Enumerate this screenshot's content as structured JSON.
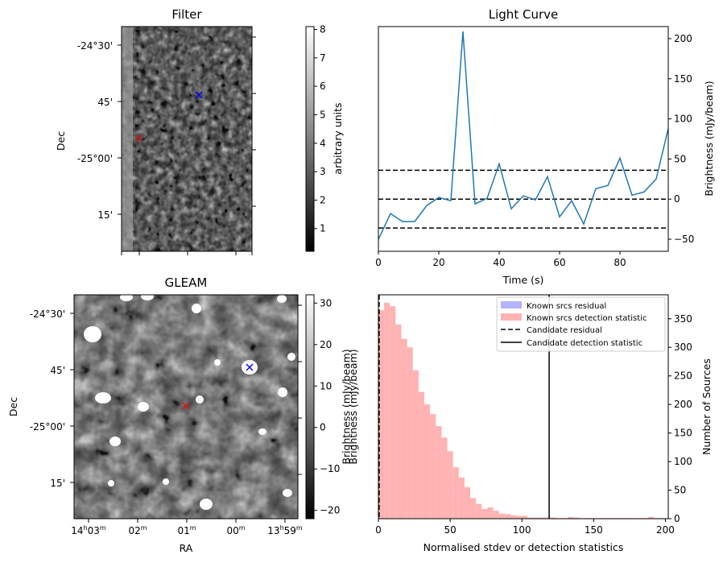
{
  "chart_data": [
    {
      "type": "heatmap",
      "panel": "filter",
      "title": "Filter",
      "ylabel": "Dec",
      "ytick_labels": [
        "-24°30'",
        "45'",
        "-25°00'",
        "15'"
      ],
      "colorbar": {
        "label": "arbitrary units",
        "ticks": [
          1,
          2,
          3,
          4,
          5,
          6,
          7,
          8
        ],
        "range": [
          0.2,
          8.1
        ]
      },
      "markers": [
        {
          "symbol": "x",
          "color": "#ff0000",
          "meaning": "candidate"
        },
        {
          "symbol": "x",
          "color": "#0000ff",
          "meaning": "known source"
        }
      ],
      "colors": {
        "dark": "#121212",
        "light": "#f0f0f0"
      }
    },
    {
      "type": "line",
      "panel": "light-curve",
      "title": "Light Curve",
      "xlabel": "Time (s)",
      "ylabel": "Brightness (mJy/beam)",
      "xlim": [
        0,
        96
      ],
      "ylim": [
        -65,
        215
      ],
      "xticks": [
        0,
        20,
        40,
        60,
        80
      ],
      "yticks": [
        -50,
        0,
        50,
        100,
        150,
        200
      ],
      "x": [
        0,
        4,
        8,
        12,
        16,
        20,
        24,
        28,
        32,
        36,
        40,
        44,
        48,
        52,
        56,
        60,
        64,
        68,
        72,
        76,
        80,
        84,
        88,
        92,
        96
      ],
      "y": [
        -50,
        -18,
        -28,
        -28,
        -8,
        2,
        -2,
        209,
        -6,
        1,
        44,
        -12,
        4,
        -1,
        28,
        -22,
        -2,
        -31,
        13,
        17,
        51,
        5,
        9,
        25,
        88
      ],
      "hlines": [
        36,
        0,
        -36
      ],
      "color": "#1f77b4"
    },
    {
      "type": "heatmap",
      "panel": "gleam",
      "title": "GLEAM",
      "xlabel": "RA",
      "ylabel": "Dec",
      "ytick_labels": [
        "-24°30'",
        "45'",
        "-25°00'",
        "15'"
      ],
      "xtick_labels": [
        {
          "main": "14",
          "sup1": "h",
          "mid": "03",
          "sup2": "m"
        },
        {
          "main": "02",
          "sup1": "m"
        },
        {
          "main": "01",
          "sup1": "m"
        },
        {
          "main": "00",
          "sup1": "m"
        },
        {
          "main": "13",
          "sup1": "h",
          "mid": "59",
          "sup2": "m"
        }
      ],
      "colorbar": {
        "label": "Brightness (mJy/beam)",
        "ticks": [
          -20,
          -10,
          0,
          10,
          20,
          30
        ],
        "range": [
          -22,
          32
        ]
      },
      "markers": [
        {
          "symbol": "x",
          "color": "#ff0000",
          "meaning": "candidate"
        },
        {
          "symbol": "x",
          "color": "#0000ff",
          "meaning": "known source"
        }
      ]
    },
    {
      "type": "bar",
      "panel": "histogram",
      "xlabel": "Normalised stdev or detection statistics",
      "ylabel_left": "Brightness (mJy/beam)",
      "ylabel_right": "Number of Sources",
      "xlim": [
        0,
        202
      ],
      "ylim": [
        0,
        392
      ],
      "xticks": [
        0,
        50,
        100,
        150,
        200
      ],
      "yticks": [
        0,
        50,
        100,
        150,
        200,
        250,
        300,
        350
      ],
      "bin_width": 4,
      "bin_start": 0,
      "values": [
        365,
        378,
        372,
        340,
        315,
        300,
        260,
        222,
        200,
        183,
        162,
        142,
        118,
        90,
        72,
        55,
        36,
        26,
        17,
        20,
        14,
        9,
        8,
        6,
        5,
        5,
        2,
        2,
        2,
        2,
        2,
        1,
        1,
        3,
        2,
        1,
        1,
        1,
        1,
        1,
        1,
        1,
        1,
        1,
        1,
        1,
        1,
        3,
        1,
        1
      ],
      "candidate_residual": 0.5,
      "candidate_detection_statistic": 119,
      "legend": [
        {
          "label": "Known srcs residual",
          "color": "#b3b3ff",
          "kind": "patch"
        },
        {
          "label": "Known srcs detection statistic",
          "color": "#ffb3b3",
          "kind": "patch"
        },
        {
          "label": "Candidate residual",
          "color": "#000000",
          "kind": "dashed"
        },
        {
          "label": "Candidate detection statistic",
          "color": "#000000",
          "kind": "solid"
        }
      ],
      "legend_position": "top-right",
      "bar_color": "#ffb3b3"
    }
  ]
}
